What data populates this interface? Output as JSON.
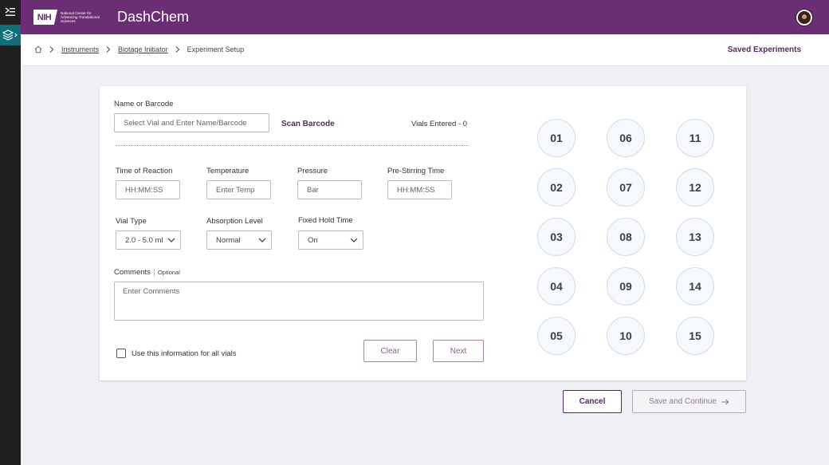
{
  "header": {
    "logo_mark": "NIH",
    "logo_text": "National Center for Advancing Translational Sciences",
    "app_title": "DashChem"
  },
  "breadcrumb": {
    "items": [
      "Instruments",
      "Biotage Initiator"
    ],
    "current": "Experiment Setup"
  },
  "saved_experiments_label": "Saved Experiments",
  "form": {
    "name_label": "Name or Barcode",
    "name_placeholder": "Select Vial and Enter Name/Barcode",
    "scan_barcode_label": "Scan Barcode",
    "vials_entered": "Vials Entered - 0",
    "time_of_reaction": {
      "label": "Time of Reaction",
      "placeholder": "HH:MM:SS"
    },
    "temperature": {
      "label": "Temperature",
      "placeholder": "Enter Temp"
    },
    "pressure": {
      "label": "Pressure",
      "placeholder": "Bar"
    },
    "pre_stirring": {
      "label": "Pre-Stirring Time",
      "placeholder": "HH:MM:SS"
    },
    "vial_type": {
      "label": "Vial Type",
      "value": "2.0 - 5.0 ml"
    },
    "absorption_level": {
      "label": "Absorption Level",
      "value": "Normal"
    },
    "fixed_hold_time": {
      "label": "Fixed Hold Time",
      "value": "On"
    },
    "comments": {
      "label": "Comments",
      "optional": "Optional",
      "placeholder": "Enter Comments"
    },
    "use_for_all_label": "Use this information for all vials",
    "clear_label": "Clear",
    "next_label": "Next"
  },
  "vials": [
    "01",
    "02",
    "03",
    "04",
    "05",
    "06",
    "07",
    "08",
    "09",
    "10",
    "11",
    "12",
    "13",
    "14",
    "15"
  ],
  "footer": {
    "cancel_label": "Cancel",
    "save_label": "Save and Continue"
  },
  "colors": {
    "brand": "#6b2d73",
    "accent_teal": "#0f6e7a",
    "link": "#5b2566"
  },
  "icons": {
    "menu": "menu-collapse-icon",
    "layers": "layers-icon",
    "home": "home-icon",
    "chevron": "chevron-right-icon",
    "dropdown": "chevron-down-icon",
    "arrow": "arrow-right-icon"
  }
}
